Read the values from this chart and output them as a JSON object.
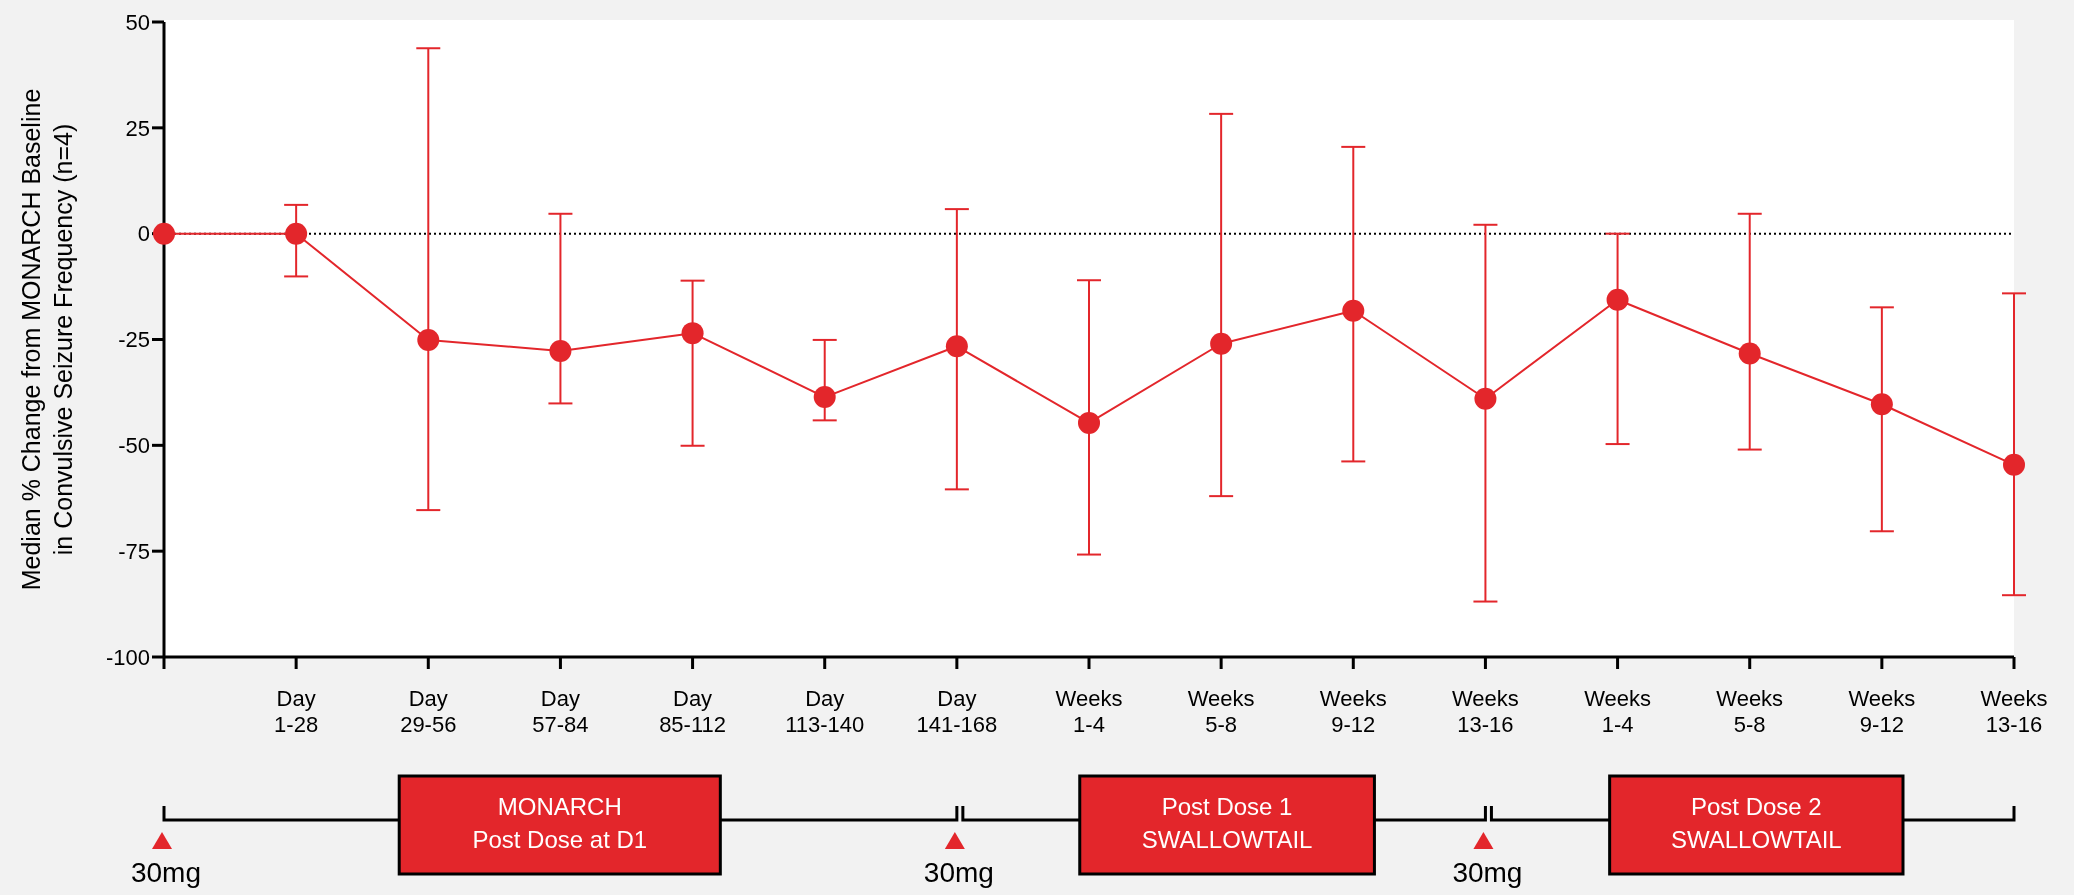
{
  "chart_data": {
    "type": "line",
    "ylabel": "Median % Change from MONARCH Baseline\nin Convulsive Seizure Frequency (n=4)",
    "categories": [
      null,
      "Day\n1-28",
      "Day\n29-56",
      "Day\n57-84",
      "Day\n85-112",
      "Day\n113-140",
      "Day\n141-168",
      "Weeks\n1-4",
      "Weeks\n5-8",
      "Weeks\n9-12",
      "Weeks\n13-16",
      "Weeks\n1-4",
      "Weeks\n5-8",
      "Weeks\n9-12",
      "Weeks\n13-16"
    ],
    "series": [
      {
        "color": "#e3262b",
        "values": [
          0,
          0,
          -25.1,
          -27.7,
          -23.5,
          -38.6,
          -26.6,
          -44.7,
          -26,
          -18.2,
          -39,
          -15.6,
          -28.3,
          -40.3,
          -54.6
        ],
        "errors": [
          null,
          [
            -10.1,
            6.8
          ],
          [
            -65.3,
            43.8
          ],
          [
            -40.1,
            4.7
          ],
          [
            -50.1,
            -11.1
          ],
          [
            -44.1,
            -25.1
          ],
          [
            -60.4,
            5.8
          ],
          [
            -75.8,
            -11
          ],
          [
            -62,
            28.3
          ],
          [
            -53.8,
            20.5
          ],
          [
            -86.9,
            2.1
          ],
          [
            -49.7,
            0
          ],
          [
            -51,
            4.7
          ],
          [
            -70.3,
            -17.4
          ],
          [
            -85.4,
            -14.1
          ]
        ]
      }
    ],
    "ylim": [
      -100,
      50
    ],
    "yticks": [
      -100,
      -75,
      -50,
      -25,
      0,
      25,
      50
    ],
    "grid": false,
    "marker": "circle",
    "line_style": "solid",
    "ref_lines": [
      {
        "axis": "y",
        "value": 0,
        "line_style": "dotted",
        "color": "#000000"
      }
    ],
    "annotations": [
      "30mg",
      "MONARCH\nPost Dose at D1",
      "30mg",
      "Post Dose 1\nSWALLOWTAIL",
      "30mg",
      "Post Dose 2\nSWALLOWTAIL"
    ]
  }
}
